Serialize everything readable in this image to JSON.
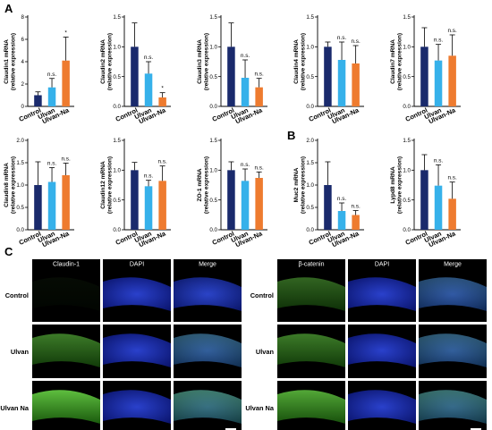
{
  "panel_letters": {
    "a": "A",
    "b": "B",
    "c": "C"
  },
  "colors": {
    "control": "#1a2a6c",
    "ulvan": "#36b1ea",
    "ulvan_na": "#ee7b2f"
  },
  "chart_data": [
    {
      "type": "bar",
      "ylabel": [
        "Claudin1 mRNA",
        "(relative expression)"
      ],
      "categories": [
        "Control",
        "Ulvan",
        "Ulvan-Na"
      ],
      "values": [
        1.0,
        1.7,
        4.1
      ],
      "errors": [
        0.3,
        0.8,
        2.1
      ],
      "sig": [
        "",
        "n.s.",
        "*"
      ],
      "ylim": [
        0,
        8
      ],
      "yticks": [
        0,
        2,
        4,
        6,
        8
      ]
    },
    {
      "type": "bar",
      "ylabel": [
        "Claudin2 mRNA",
        "(relative expression)"
      ],
      "categories": [
        "Control",
        "Ulvan",
        "Ulvan-Na"
      ],
      "values": [
        1.0,
        0.55,
        0.15
      ],
      "errors": [
        0.4,
        0.2,
        0.08
      ],
      "sig": [
        "",
        "n.s.",
        "*"
      ],
      "ylim": [
        0,
        1.5
      ],
      "yticks": [
        0.0,
        0.5,
        1.0,
        1.5
      ]
    },
    {
      "type": "bar",
      "ylabel": [
        "Claudin3 mRNA",
        "(relative expression)"
      ],
      "categories": [
        "Control",
        "Ulvan",
        "Ulvan-Na"
      ],
      "values": [
        1.0,
        0.48,
        0.32
      ],
      "errors": [
        0.4,
        0.3,
        0.15
      ],
      "sig": [
        "",
        "n.s.",
        "n.s."
      ],
      "ylim": [
        0,
        1.5
      ],
      "yticks": [
        0.0,
        0.5,
        1.0,
        1.5
      ]
    },
    {
      "type": "bar",
      "ylabel": [
        "Claudin4 mRNA",
        "(relative expression)"
      ],
      "categories": [
        "Control",
        "Ulvan",
        "Ulvan-Na"
      ],
      "values": [
        1.0,
        0.78,
        0.72
      ],
      "errors": [
        0.08,
        0.3,
        0.3
      ],
      "sig": [
        "",
        "n.s.",
        "n.s."
      ],
      "ylim": [
        0,
        1.5
      ],
      "yticks": [
        0.0,
        0.5,
        1.0,
        1.5
      ]
    },
    {
      "type": "bar",
      "ylabel": [
        "Claudin7 mRNA",
        "(relative expression)"
      ],
      "categories": [
        "Control",
        "Ulvan",
        "Ulvan-Na"
      ],
      "values": [
        1.0,
        0.77,
        0.85
      ],
      "errors": [
        0.32,
        0.27,
        0.35
      ],
      "sig": [
        "",
        "n.s.",
        "n.s."
      ],
      "ylim": [
        0,
        1.5
      ],
      "yticks": [
        0.0,
        0.5,
        1.0,
        1.5
      ]
    },
    {
      "type": "bar",
      "ylabel": [
        "Claudin8 mRNA",
        "(relative expression)"
      ],
      "categories": [
        "Control",
        "Ulvan",
        "Ulvan-Na"
      ],
      "values": [
        1.0,
        1.07,
        1.22
      ],
      "errors": [
        0.52,
        0.32,
        0.27
      ],
      "sig": [
        "",
        "n.s.",
        "n.s."
      ],
      "ylim": [
        0,
        2.0
      ],
      "yticks": [
        0.0,
        0.5,
        1.0,
        1.5,
        2.0
      ]
    },
    {
      "type": "bar",
      "ylabel": [
        "Claudin12 mRNA",
        "(relative expression)"
      ],
      "categories": [
        "Control",
        "Ulvan",
        "Ulvan-Na"
      ],
      "values": [
        1.0,
        0.73,
        0.82
      ],
      "errors": [
        0.13,
        0.1,
        0.25
      ],
      "sig": [
        "",
        "n.s.",
        "n.s."
      ],
      "ylim": [
        0,
        1.5
      ],
      "yticks": [
        0.0,
        0.5,
        1.0,
        1.5
      ]
    },
    {
      "type": "bar",
      "ylabel": [
        "ZO-1 mRNA",
        "(relative expression)"
      ],
      "categories": [
        "Control",
        "Ulvan",
        "Ulvan-Na"
      ],
      "values": [
        1.0,
        0.82,
        0.87
      ],
      "errors": [
        0.14,
        0.2,
        0.1
      ],
      "sig": [
        "",
        "n.s.",
        "n.s."
      ],
      "ylim": [
        0,
        1.5
      ],
      "yticks": [
        0.0,
        0.5,
        1.0,
        1.5
      ]
    },
    {
      "type": "bar",
      "ylabel": [
        "Muc2 mRNA",
        "(relative expression)"
      ],
      "categories": [
        "Control",
        "Ulvan",
        "Ulvan-Na"
      ],
      "values": [
        1.0,
        0.42,
        0.33
      ],
      "errors": [
        0.52,
        0.18,
        0.1
      ],
      "sig": [
        "",
        "n.s.",
        "n.s."
      ],
      "ylim": [
        0,
        2.0
      ],
      "yticks": [
        0.0,
        0.5,
        1.0,
        1.5,
        2.0
      ]
    },
    {
      "type": "bar",
      "ylabel": [
        "Lypd8 mRNA",
        "(relative expression)"
      ],
      "categories": [
        "Control",
        "Ulvan",
        "Ulvan-Na"
      ],
      "values": [
        1.0,
        0.74,
        0.52
      ],
      "errors": [
        0.26,
        0.35,
        0.28
      ],
      "sig": [
        "",
        "n.s.",
        "n.s."
      ],
      "ylim": [
        0,
        1.5
      ],
      "yticks": [
        0.0,
        0.5,
        1.0,
        1.5
      ]
    }
  ],
  "micrographs": {
    "left": {
      "headers": [
        "Claudin-1",
        "DAPI",
        "Merge"
      ],
      "rows": [
        "Control",
        "Ulvan",
        "Ulvan Na"
      ]
    },
    "right": {
      "headers": [
        "β-catenin",
        "DAPI",
        "Merge"
      ],
      "rows": [
        "Control",
        "Ulvan",
        "Ulvan Na"
      ]
    }
  }
}
